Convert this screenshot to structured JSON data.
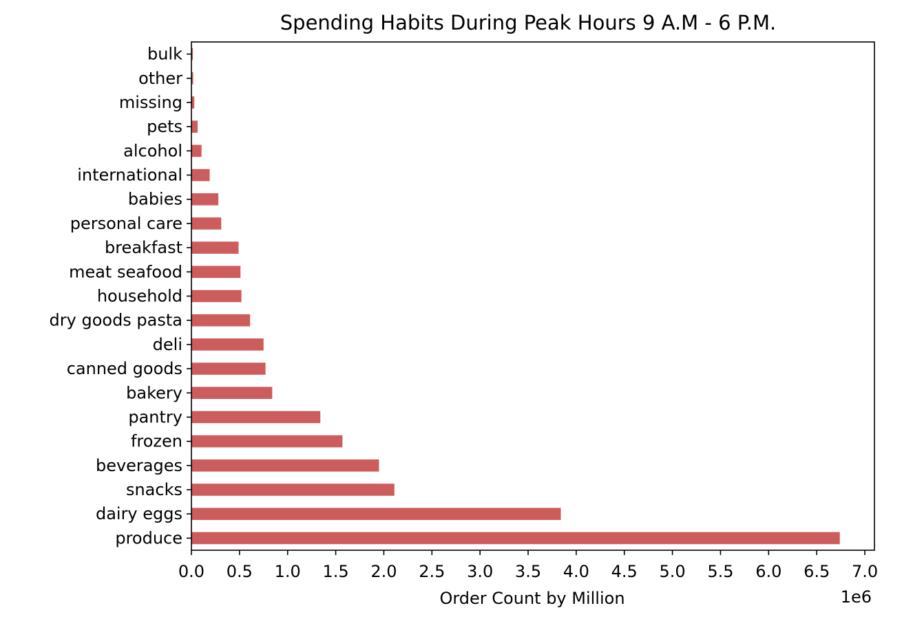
{
  "chart_data": {
    "type": "bar",
    "orientation": "horizontal",
    "title": "Spending Habits During Peak Hours 9 A.M - 6 P.M.",
    "xlabel": "Order Count by Million",
    "ylabel": "",
    "offset_label": "1e6",
    "categories": [
      "produce",
      "dairy eggs",
      "snacks",
      "beverages",
      "frozen",
      "pantry",
      "bakery",
      "canned goods",
      "deli",
      "dry goods pasta",
      "household",
      "meat seafood",
      "breakfast",
      "personal care",
      "babies",
      "international",
      "alcohol",
      "pets",
      "missing",
      "other",
      "bulk"
    ],
    "values": [
      6740000,
      3840000,
      2110000,
      1950000,
      1570000,
      1340000,
      840000,
      770000,
      750000,
      610000,
      520000,
      510000,
      490000,
      310000,
      280000,
      190000,
      105000,
      65000,
      30000,
      18000,
      15000
    ],
    "xlim": [
      0,
      7100000
    ],
    "xticks": [
      0,
      500000,
      1000000,
      1500000,
      2000000,
      2500000,
      3000000,
      3500000,
      4000000,
      4500000,
      5000000,
      5500000,
      6000000,
      6500000,
      7000000
    ],
    "xtick_labels": [
      "0.0",
      "0.5",
      "1.0",
      "1.5",
      "2.0",
      "2.5",
      "3.0",
      "3.5",
      "4.0",
      "4.5",
      "5.0",
      "5.5",
      "6.0",
      "6.5",
      "7.0"
    ],
    "bar_color": "#cd5c5c",
    "grid": false,
    "legend": "none"
  }
}
